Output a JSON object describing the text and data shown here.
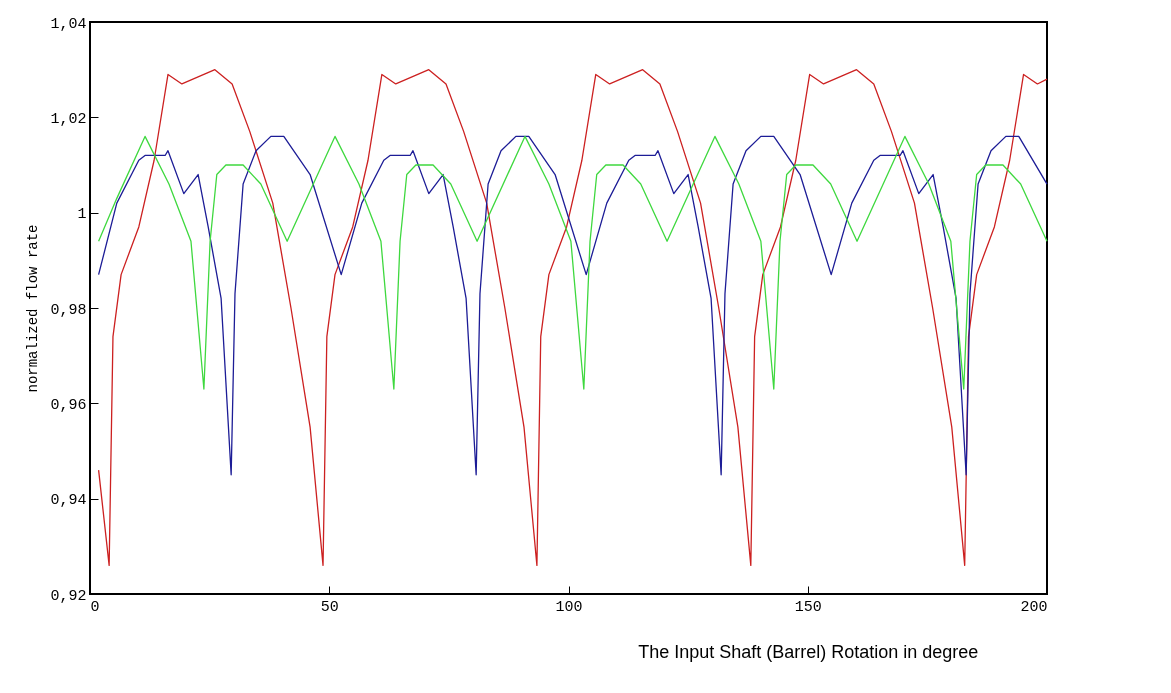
{
  "chart_data": {
    "type": "line",
    "xlabel": "The Input Shaft (Barrel) Rotation in degree",
    "ylabel": "normalized flow rate",
    "xlim": [
      0,
      200
    ],
    "xticks": [
      0,
      50,
      100,
      150,
      200
    ],
    "ylim": [
      0.92,
      1.04
    ],
    "yticks": [
      {
        "value": 0.92,
        "label": "0,92"
      },
      {
        "value": 0.94,
        "label": "0,94"
      },
      {
        "value": 0.96,
        "label": "0,96"
      },
      {
        "value": 0.98,
        "label": "0,98"
      },
      1,
      {
        "value": 1.02,
        "label": "1,02"
      },
      {
        "value": 1.04,
        "label": "1,04"
      }
    ],
    "grid": false,
    "series": [
      {
        "color": "#cc2020",
        "x": [
          1.8,
          4.0,
          4.8,
          6.5,
          10.2,
          13.4,
          16.3,
          19.2,
          26.1,
          29.7,
          33.4,
          38.2,
          42.0,
          46.0,
          48.7,
          49.5,
          51.2,
          54.9,
          58.1,
          61.0,
          63.9,
          70.8,
          74.4,
          78.1,
          82.9,
          86.7,
          90.7,
          93.4,
          94.2,
          95.9,
          99.6,
          102.8,
          105.7,
          108.6,
          115.5,
          119.1,
          122.8,
          127.6,
          131.4,
          135.4,
          138.1,
          138.9,
          140.6,
          144.3,
          147.5,
          150.4,
          153.3,
          160.2,
          163.8,
          167.5,
          172.3,
          176.1,
          180.1,
          182.8,
          183.6,
          185.3,
          189.0,
          192.2,
          195.1,
          198.0,
          200.0
        ],
        "values": [
          0.946,
          0.926,
          0.974,
          0.987,
          0.997,
          1.011,
          1.029,
          1.027,
          1.03,
          1.027,
          1.017,
          1.002,
          0.98,
          0.955,
          0.926,
          0.974,
          0.987,
          0.997,
          1.011,
          1.029,
          1.027,
          1.03,
          1.027,
          1.017,
          1.002,
          0.98,
          0.955,
          0.926,
          0.974,
          0.987,
          0.997,
          1.011,
          1.029,
          1.027,
          1.03,
          1.027,
          1.017,
          1.002,
          0.98,
          0.955,
          0.926,
          0.974,
          0.987,
          0.997,
          1.011,
          1.029,
          1.027,
          1.03,
          1.027,
          1.017,
          1.002,
          0.98,
          0.955,
          0.926,
          0.974,
          0.987,
          0.997,
          1.011,
          1.029,
          1.027,
          1.028
        ]
      },
      {
        "color": "#1c1c96",
        "x": [
          1.8,
          5.6,
          10.2,
          11.5,
          15.7,
          16.3,
          19.6,
          22.6,
          24.7,
          27.4,
          29.5,
          30.3,
          32.0,
          34.7,
          37.8,
          40.5,
          46.0,
          52.5,
          56.8,
          61.4,
          62.7,
          66.9,
          67.5,
          70.8,
          73.8,
          75.9,
          78.6,
          80.7,
          81.5,
          83.2,
          85.9,
          89.0,
          91.7,
          97.2,
          103.7,
          108.0,
          112.6,
          113.9,
          118.1,
          118.7,
          122.0,
          125.0,
          127.1,
          129.8,
          131.9,
          132.7,
          134.4,
          137.1,
          140.2,
          142.9,
          148.4,
          154.9,
          159.2,
          163.8,
          165.1,
          169.3,
          169.9,
          173.2,
          176.2,
          178.3,
          181.0,
          183.1,
          183.9,
          185.6,
          188.3,
          191.4,
          194.1,
          200.0
        ],
        "values": [
          0.987,
          1.002,
          1.011,
          1.012,
          1.012,
          1.013,
          1.004,
          1.008,
          0.997,
          0.982,
          0.945,
          0.983,
          1.006,
          1.013,
          1.016,
          1.016,
          1.008,
          0.987,
          1.002,
          1.011,
          1.012,
          1.012,
          1.013,
          1.004,
          1.008,
          0.997,
          0.982,
          0.945,
          0.983,
          1.006,
          1.013,
          1.016,
          1.016,
          1.008,
          0.987,
          1.002,
          1.011,
          1.012,
          1.012,
          1.013,
          1.004,
          1.008,
          0.997,
          0.982,
          0.945,
          0.983,
          1.006,
          1.013,
          1.016,
          1.016,
          1.008,
          0.987,
          1.002,
          1.011,
          1.012,
          1.012,
          1.013,
          1.004,
          1.008,
          0.997,
          0.982,
          0.945,
          0.983,
          1.006,
          1.013,
          1.016,
          1.016,
          1.006
        ]
      },
      {
        "color": "#3ed83e",
        "x": [
          1.8,
          5.6,
          11.5,
          16.5,
          21.1,
          23.8,
          25.1,
          26.5,
          28.4,
          32.0,
          35.7,
          41.2,
          51.2,
          56.2,
          60.8,
          63.5,
          64.8,
          66.2,
          68.1,
          71.7,
          75.4,
          80.9,
          90.9,
          95.9,
          100.5,
          103.2,
          104.5,
          105.9,
          107.8,
          111.4,
          115.1,
          120.6,
          130.6,
          135.6,
          140.2,
          142.9,
          144.2,
          145.6,
          147.5,
          151.1,
          154.8,
          160.3,
          170.3,
          175.3,
          179.9,
          182.6,
          183.9,
          185.3,
          187.2,
          190.8,
          194.5,
          200.0
        ],
        "values": [
          0.994,
          1.003,
          1.016,
          1.006,
          0.994,
          0.963,
          0.994,
          1.008,
          1.01,
          1.01,
          1.006,
          0.994,
          1.016,
          1.006,
          0.994,
          0.963,
          0.994,
          1.008,
          1.01,
          1.01,
          1.006,
          0.994,
          1.016,
          1.006,
          0.994,
          0.963,
          0.994,
          1.008,
          1.01,
          1.01,
          1.006,
          0.994,
          1.016,
          1.006,
          0.994,
          0.963,
          0.994,
          1.008,
          1.01,
          1.01,
          1.006,
          0.994,
          1.016,
          1.006,
          0.994,
          0.963,
          0.994,
          1.008,
          1.01,
          1.01,
          1.006,
          0.994
        ]
      }
    ]
  }
}
